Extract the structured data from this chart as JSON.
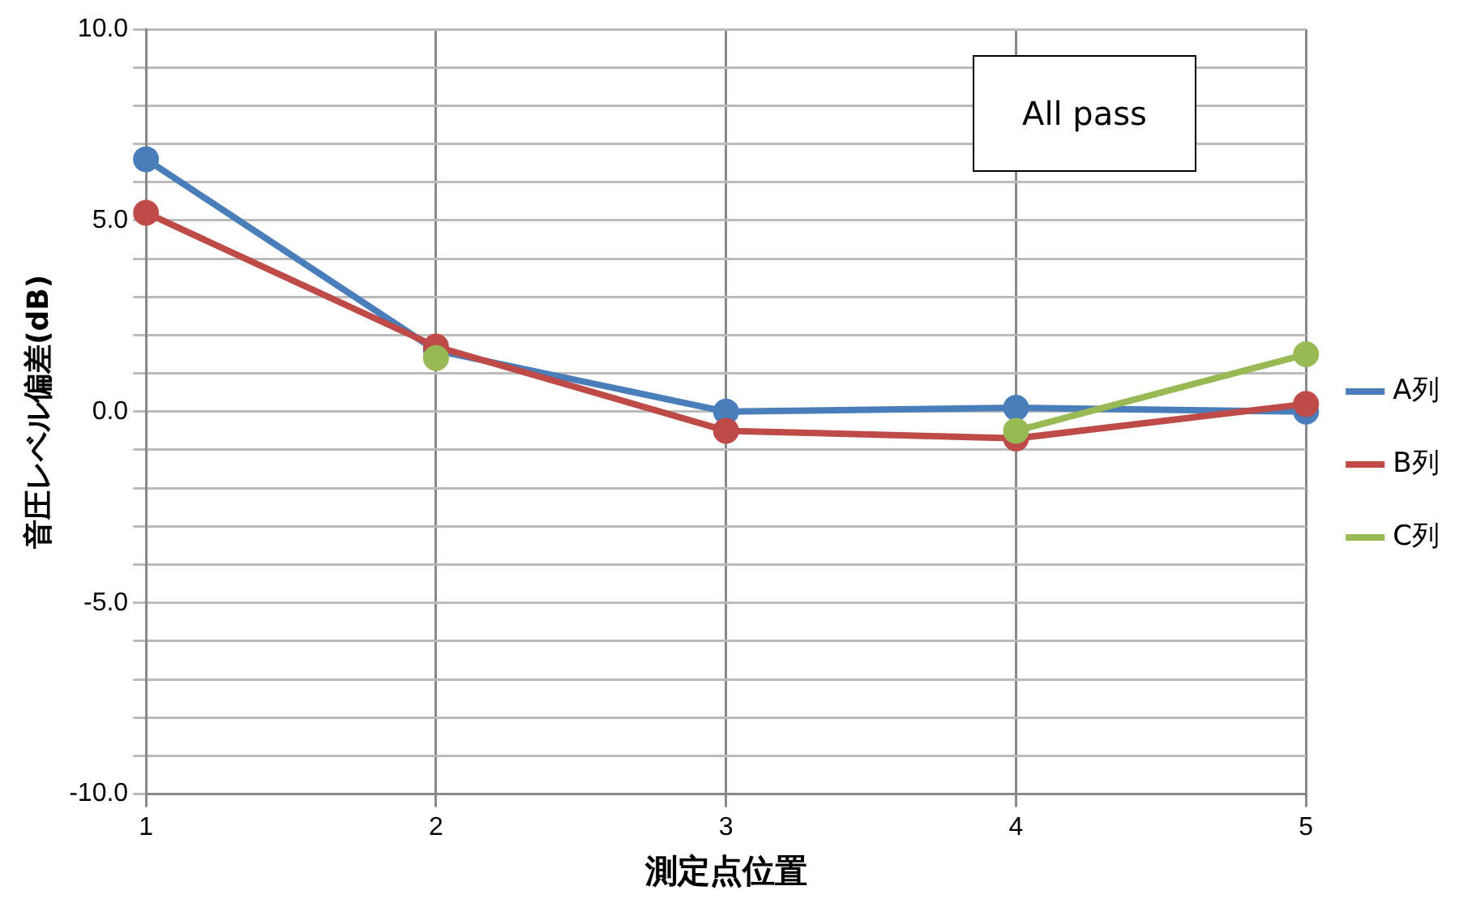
{
  "chart_data": {
    "type": "line",
    "xlabel": "測定点位置",
    "ylabel": "音圧レベル偏差(dB)",
    "categories": [
      "1",
      "2",
      "3",
      "4",
      "5"
    ],
    "series": [
      {
        "name": "A列",
        "color": "#4a7ebb",
        "values": [
          6.6,
          1.6,
          0.0,
          0.1,
          0.0
        ]
      },
      {
        "name": "B列",
        "color": "#be4b48",
        "values": [
          5.2,
          1.7,
          -0.5,
          -0.7,
          0.2
        ]
      },
      {
        "name": "C列",
        "color": "#98b954",
        "values": [
          null,
          1.4,
          null,
          -0.5,
          1.5
        ]
      }
    ],
    "ylim": [
      -10,
      10
    ],
    "yticks": [
      {
        "value": -10,
        "label": "-10.0"
      },
      {
        "value": -9,
        "label": null
      },
      {
        "value": -8,
        "label": null
      },
      {
        "value": -7,
        "label": null
      },
      {
        "value": -6,
        "label": null
      },
      {
        "value": -5,
        "label": "-5.0"
      },
      {
        "value": -4,
        "label": null
      },
      {
        "value": -3,
        "label": null
      },
      {
        "value": -2,
        "label": null
      },
      {
        "value": -1,
        "label": null
      },
      {
        "value": 0,
        "label": "0.0"
      },
      {
        "value": 1,
        "label": null
      },
      {
        "value": 2,
        "label": null
      },
      {
        "value": 3,
        "label": null
      },
      {
        "value": 4,
        "label": null
      },
      {
        "value": 5,
        "label": "5.0"
      },
      {
        "value": 6,
        "label": null
      },
      {
        "value": 7,
        "label": null
      },
      {
        "value": 8,
        "label": null
      },
      {
        "value": 9,
        "label": null
      },
      {
        "value": 10,
        "label": "10.0"
      }
    ],
    "grid": true,
    "legend": "right",
    "marker": "circle",
    "line_style": "solid",
    "annotations": [
      "All pass"
    ]
  }
}
